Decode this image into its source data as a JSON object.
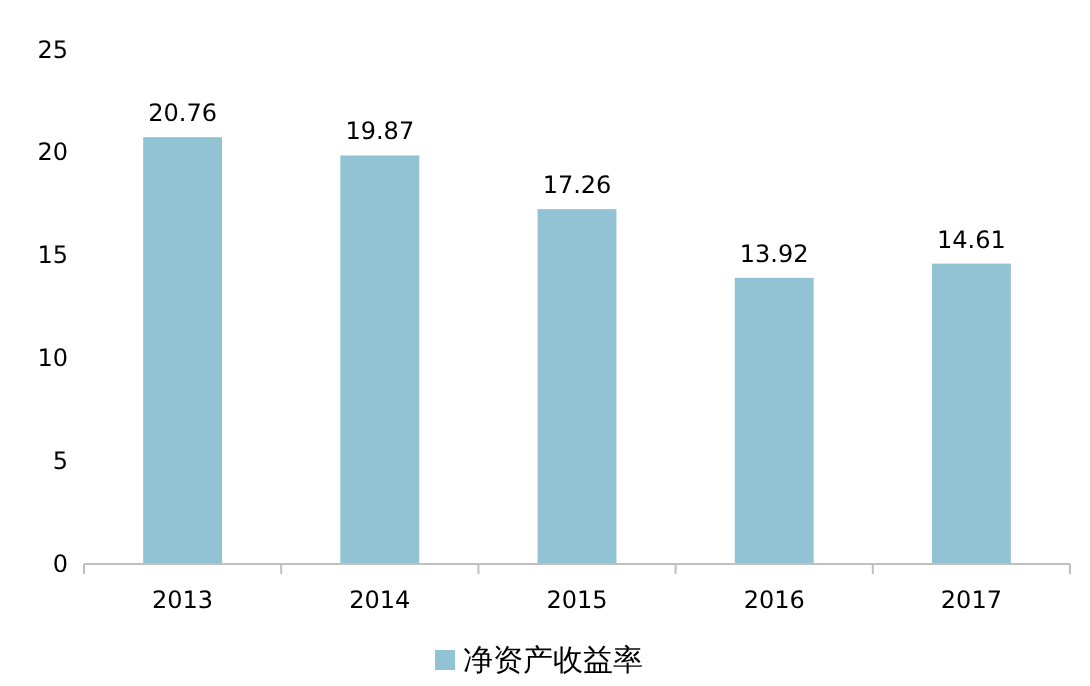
{
  "chart_data": {
    "type": "bar",
    "categories": [
      "2013",
      "2014",
      "2015",
      "2016",
      "2017"
    ],
    "series": [
      {
        "name": "净资产收益率",
        "color": "#92c3d4",
        "values": [
          20.76,
          19.87,
          17.26,
          13.92,
          14.61
        ]
      }
    ],
    "ylim": [
      0,
      25
    ],
    "yticks": [
      0,
      5,
      10,
      15,
      20,
      25
    ],
    "data_labels": true,
    "legend": "bottom",
    "grid": false
  }
}
